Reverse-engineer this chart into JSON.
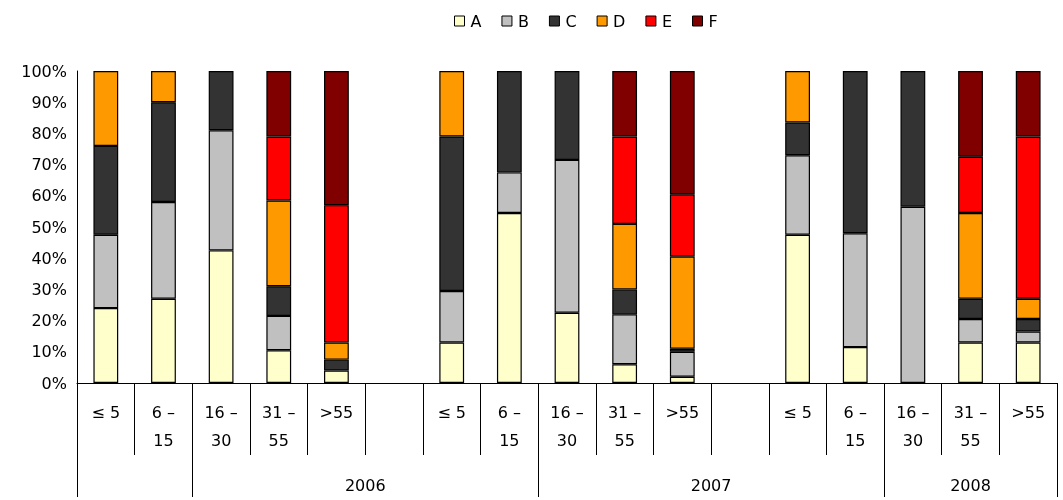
{
  "chart_data": {
    "type": "bar",
    "stacked": true,
    "legend": "top",
    "grid": false,
    "categories": [
      "≤ 5",
      "6 – 15",
      "16 – 30",
      "31 – 55",
      ">55",
      null,
      "≤ 5",
      "6 – 15",
      "16 – 30",
      "31 – 55",
      ">55",
      null,
      "≤ 5",
      "6 – 15",
      "16 – 30",
      "31 – 55",
      ">55"
    ],
    "series": [
      {
        "name": "A",
        "color": "#ffffcc",
        "values": [
          24,
          27,
          42.5,
          10.5,
          4,
          null,
          13,
          54.5,
          22.5,
          6,
          2,
          null,
          47.5,
          11.5,
          null,
          13,
          13
        ]
      },
      {
        "name": "B",
        "color": "#c0c0c0",
        "values": [
          23.5,
          31,
          38.5,
          11,
          null,
          null,
          16.5,
          13,
          49,
          16,
          8,
          null,
          25.5,
          36.5,
          56.5,
          7.5,
          3.5
        ]
      },
      {
        "name": "C",
        "color": "#333333",
        "values": [
          28.5,
          32,
          19,
          9.5,
          3.5,
          null,
          49.5,
          32.5,
          28.5,
          8,
          1,
          null,
          10.5,
          52,
          43.5,
          6.5,
          4
        ]
      },
      {
        "name": "D",
        "color": "#ff9900",
        "values": [
          24,
          10,
          null,
          27.5,
          5.5,
          null,
          21,
          null,
          null,
          21,
          29.5,
          null,
          16.5,
          null,
          null,
          27.5,
          6.5
        ]
      },
      {
        "name": "E",
        "color": "#ff0000",
        "values": [
          null,
          null,
          null,
          20.5,
          44,
          null,
          null,
          null,
          null,
          28,
          20,
          null,
          null,
          null,
          null,
          18,
          52
        ]
      },
      {
        "name": "F",
        "color": "#800000",
        "values": [
          null,
          null,
          null,
          21,
          43,
          null,
          null,
          null,
          null,
          21,
          39.5,
          null,
          null,
          null,
          null,
          27.5,
          21
        ]
      }
    ],
    "ylim": [
      0,
      100
    ],
    "yticks": [
      {
        "value": 0,
        "label": "0%"
      },
      {
        "value": 10,
        "label": "10%"
      },
      {
        "value": 20,
        "label": "20%"
      },
      {
        "value": 30,
        "label": "30%"
      },
      {
        "value": 40,
        "label": "40%"
      },
      {
        "value": 50,
        "label": "50%"
      },
      {
        "value": 60,
        "label": "60%"
      },
      {
        "value": 70,
        "label": "70%"
      },
      {
        "value": 80,
        "label": "80%"
      },
      {
        "value": 90,
        "label": "90%"
      },
      {
        "value": 100,
        "label": "100%"
      }
    ],
    "annotations": [
      "2006",
      "2007",
      "2008"
    ]
  }
}
